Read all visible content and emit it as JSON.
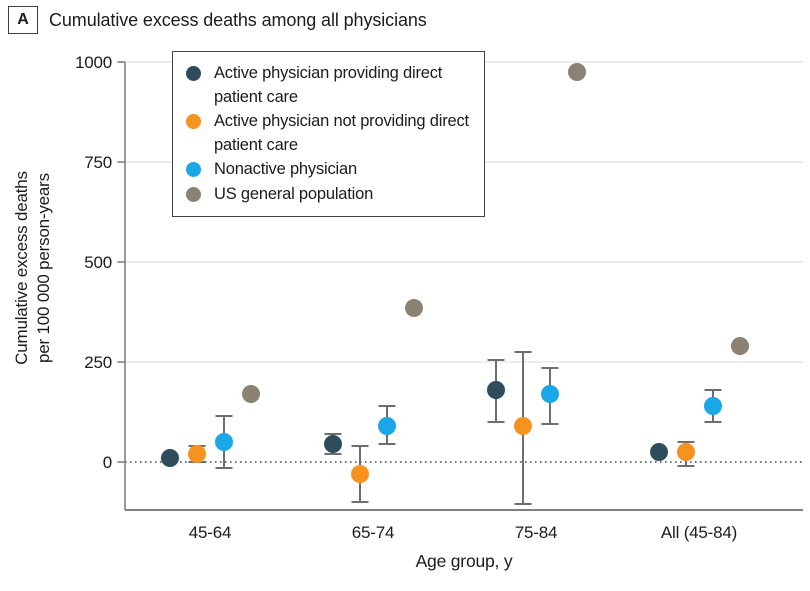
{
  "chart_data": {
    "type": "scatter",
    "panel_label": "A",
    "title": "Cumulative excess deaths among all physicians",
    "xlabel": "Age group, y",
    "ylabel_line1": "Cumulative excess deaths",
    "ylabel_line2": "per 100 000 person-years",
    "categories": [
      "45-64",
      "65-74",
      "75-84",
      "All (45-84)"
    ],
    "yticks": [
      0,
      250,
      500,
      750,
      1000
    ],
    "ylim": [
      -120,
      1000
    ],
    "grid": "horizontal-light",
    "zero_line": "dotted",
    "legend_position": "top-left-inside",
    "colors": {
      "axis": "#808080",
      "gridline": "#e7e7e7",
      "error_bar": "#6e6e6e",
      "zero_line": "#4a4a4a",
      "text": "#1c1c1c"
    },
    "series": [
      {
        "name": "Active physician providing direct patient care",
        "color": "#2e4c5c",
        "values": [
          10,
          45,
          180,
          25
        ],
        "ci_low": [
          null,
          20,
          100,
          null
        ],
        "ci_high": [
          null,
          70,
          255,
          null
        ]
      },
      {
        "name": "Active physician not providing direct patient care",
        "color": "#f6921e",
        "values": [
          20,
          -30,
          90,
          25
        ],
        "ci_low": [
          0,
          -100,
          -105,
          -10
        ],
        "ci_high": [
          40,
          40,
          275,
          50
        ]
      },
      {
        "name": "Nonactive physician",
        "color": "#1aa7e8",
        "values": [
          50,
          90,
          170,
          140
        ],
        "ci_low": [
          -15,
          45,
          95,
          100
        ],
        "ci_high": [
          115,
          140,
          235,
          180
        ]
      },
      {
        "name": "US general population",
        "color": "#8b8274",
        "values": [
          170,
          385,
          975,
          290
        ],
        "ci_low": [
          null,
          null,
          null,
          null
        ],
        "ci_high": [
          null,
          null,
          null,
          null
        ]
      }
    ]
  }
}
